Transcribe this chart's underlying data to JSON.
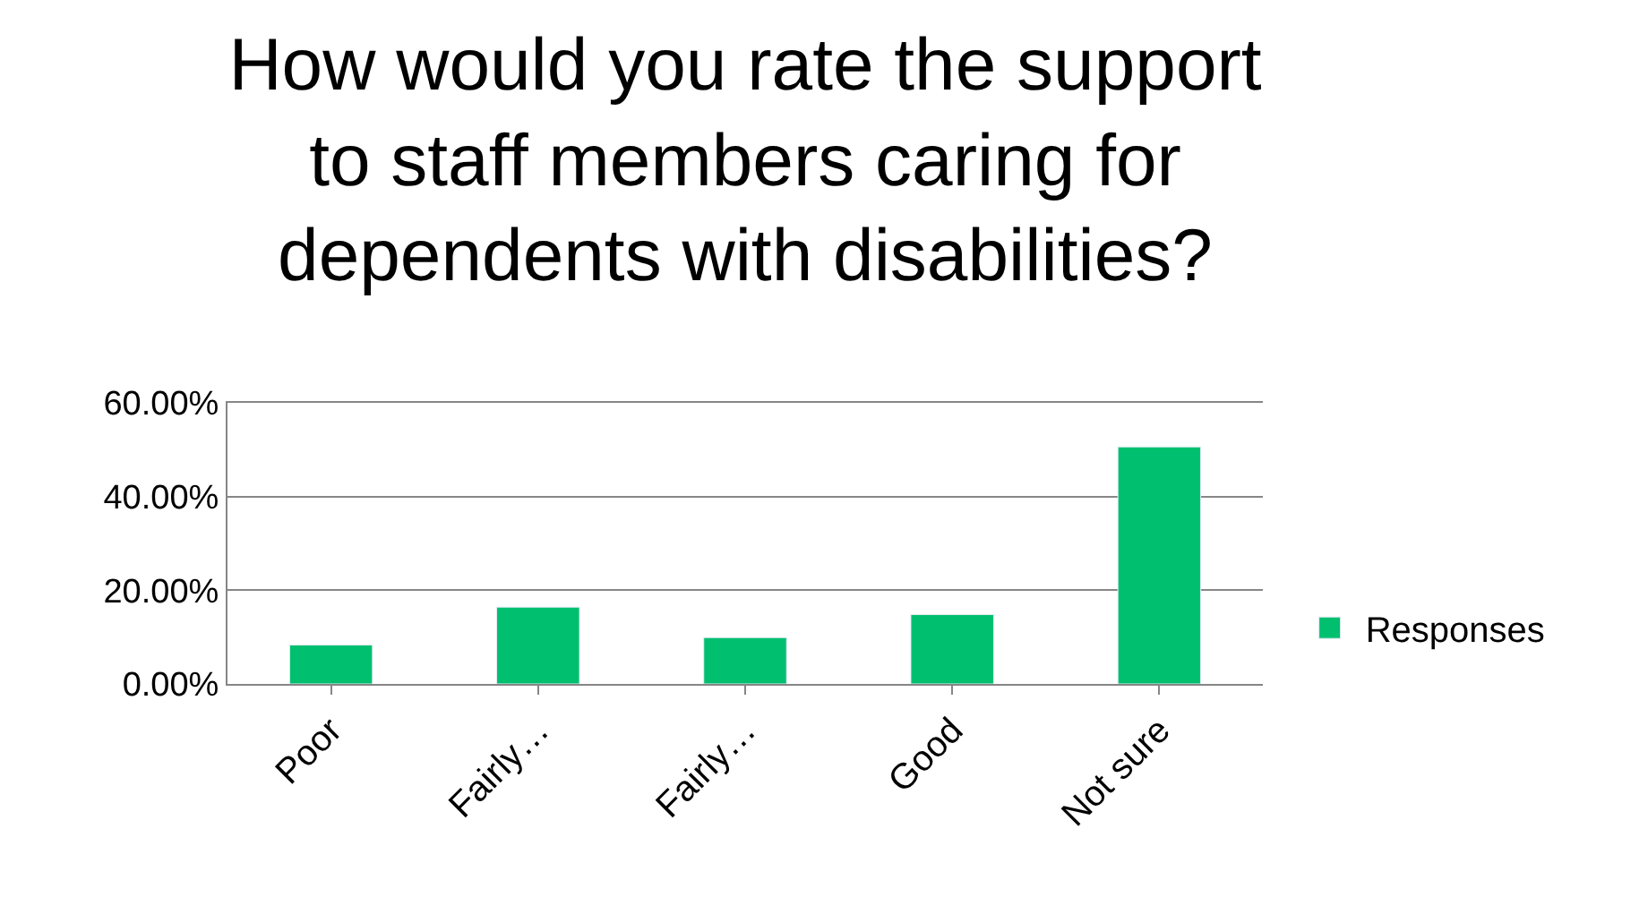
{
  "chart_data": {
    "type": "bar",
    "title": "How would you rate the support to staff members caring for dependents with disabilities?",
    "categories": [
      "Poor",
      "Fairly…",
      "Fairly…",
      "Good",
      "Not sure"
    ],
    "series": [
      {
        "name": "Responses",
        "color": "#00bf6f",
        "values": [
          8.3,
          16.4,
          9.9,
          14.8,
          50.6
        ]
      }
    ],
    "ylim": [
      0,
      60
    ],
    "yticks": [
      {
        "value": 0,
        "label": "0.00%"
      },
      {
        "value": 20,
        "label": "20.00%"
      },
      {
        "value": 40,
        "label": "40.00%"
      },
      {
        "value": 60,
        "label": "60.00%"
      }
    ],
    "grid": "y",
    "legend": "right"
  }
}
